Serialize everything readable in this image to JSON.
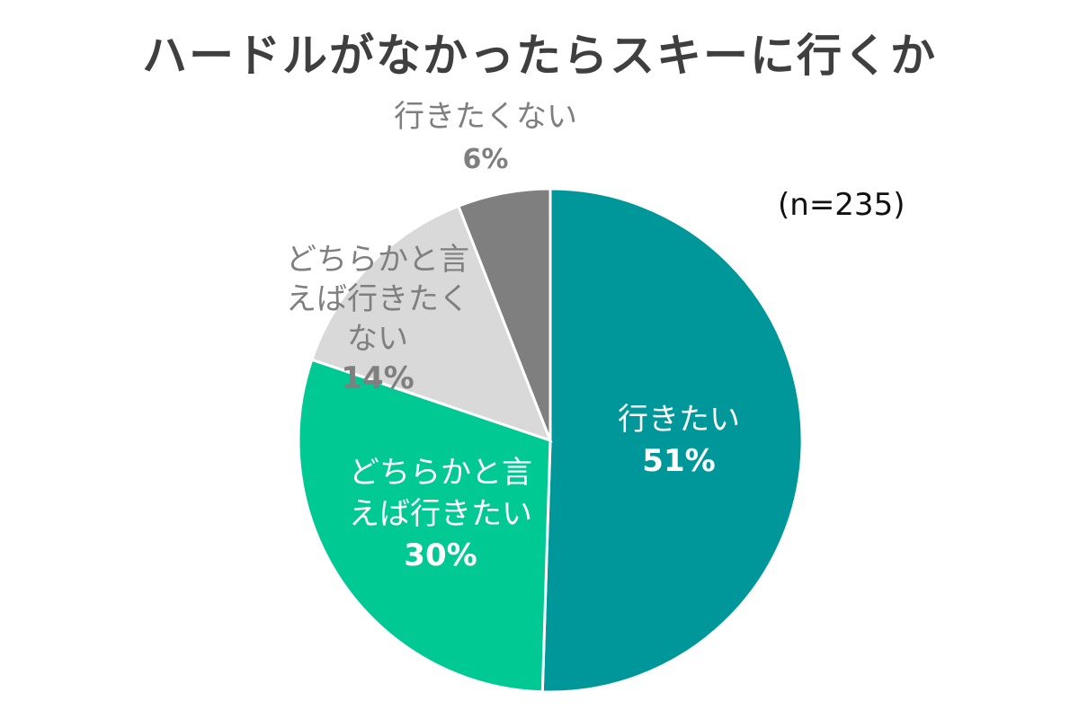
{
  "chart_data": {
    "type": "pie",
    "title": "ハードルがなかったらスキーに行くか",
    "note": "(n=235)",
    "slices": [
      {
        "name": "行きたい",
        "value": 51,
        "value_label": "51%",
        "color": "#00979a",
        "label_color": "#ffffff",
        "label_lines": [
          "行きたい"
        ]
      },
      {
        "name": "どちらかと言えば行きたい",
        "value": 30,
        "value_label": "30%",
        "color": "#00c994",
        "label_color": "#ffffff",
        "label_lines": [
          "どちらかと言",
          "えば行きたい"
        ]
      },
      {
        "name": "どちらかと言えば行きたくない",
        "value": 14,
        "value_label": "14%",
        "color": "#d9d9d9",
        "label_color": "#7f7f7f",
        "label_lines": [
          "どちらかと言",
          "えば行きたく",
          "ない"
        ]
      },
      {
        "name": "行きたくない",
        "value": 6,
        "value_label": "6%",
        "color": "#7f7f7f",
        "label_color": "#7f7f7f",
        "label_lines": [
          "行きたくない"
        ]
      }
    ]
  }
}
